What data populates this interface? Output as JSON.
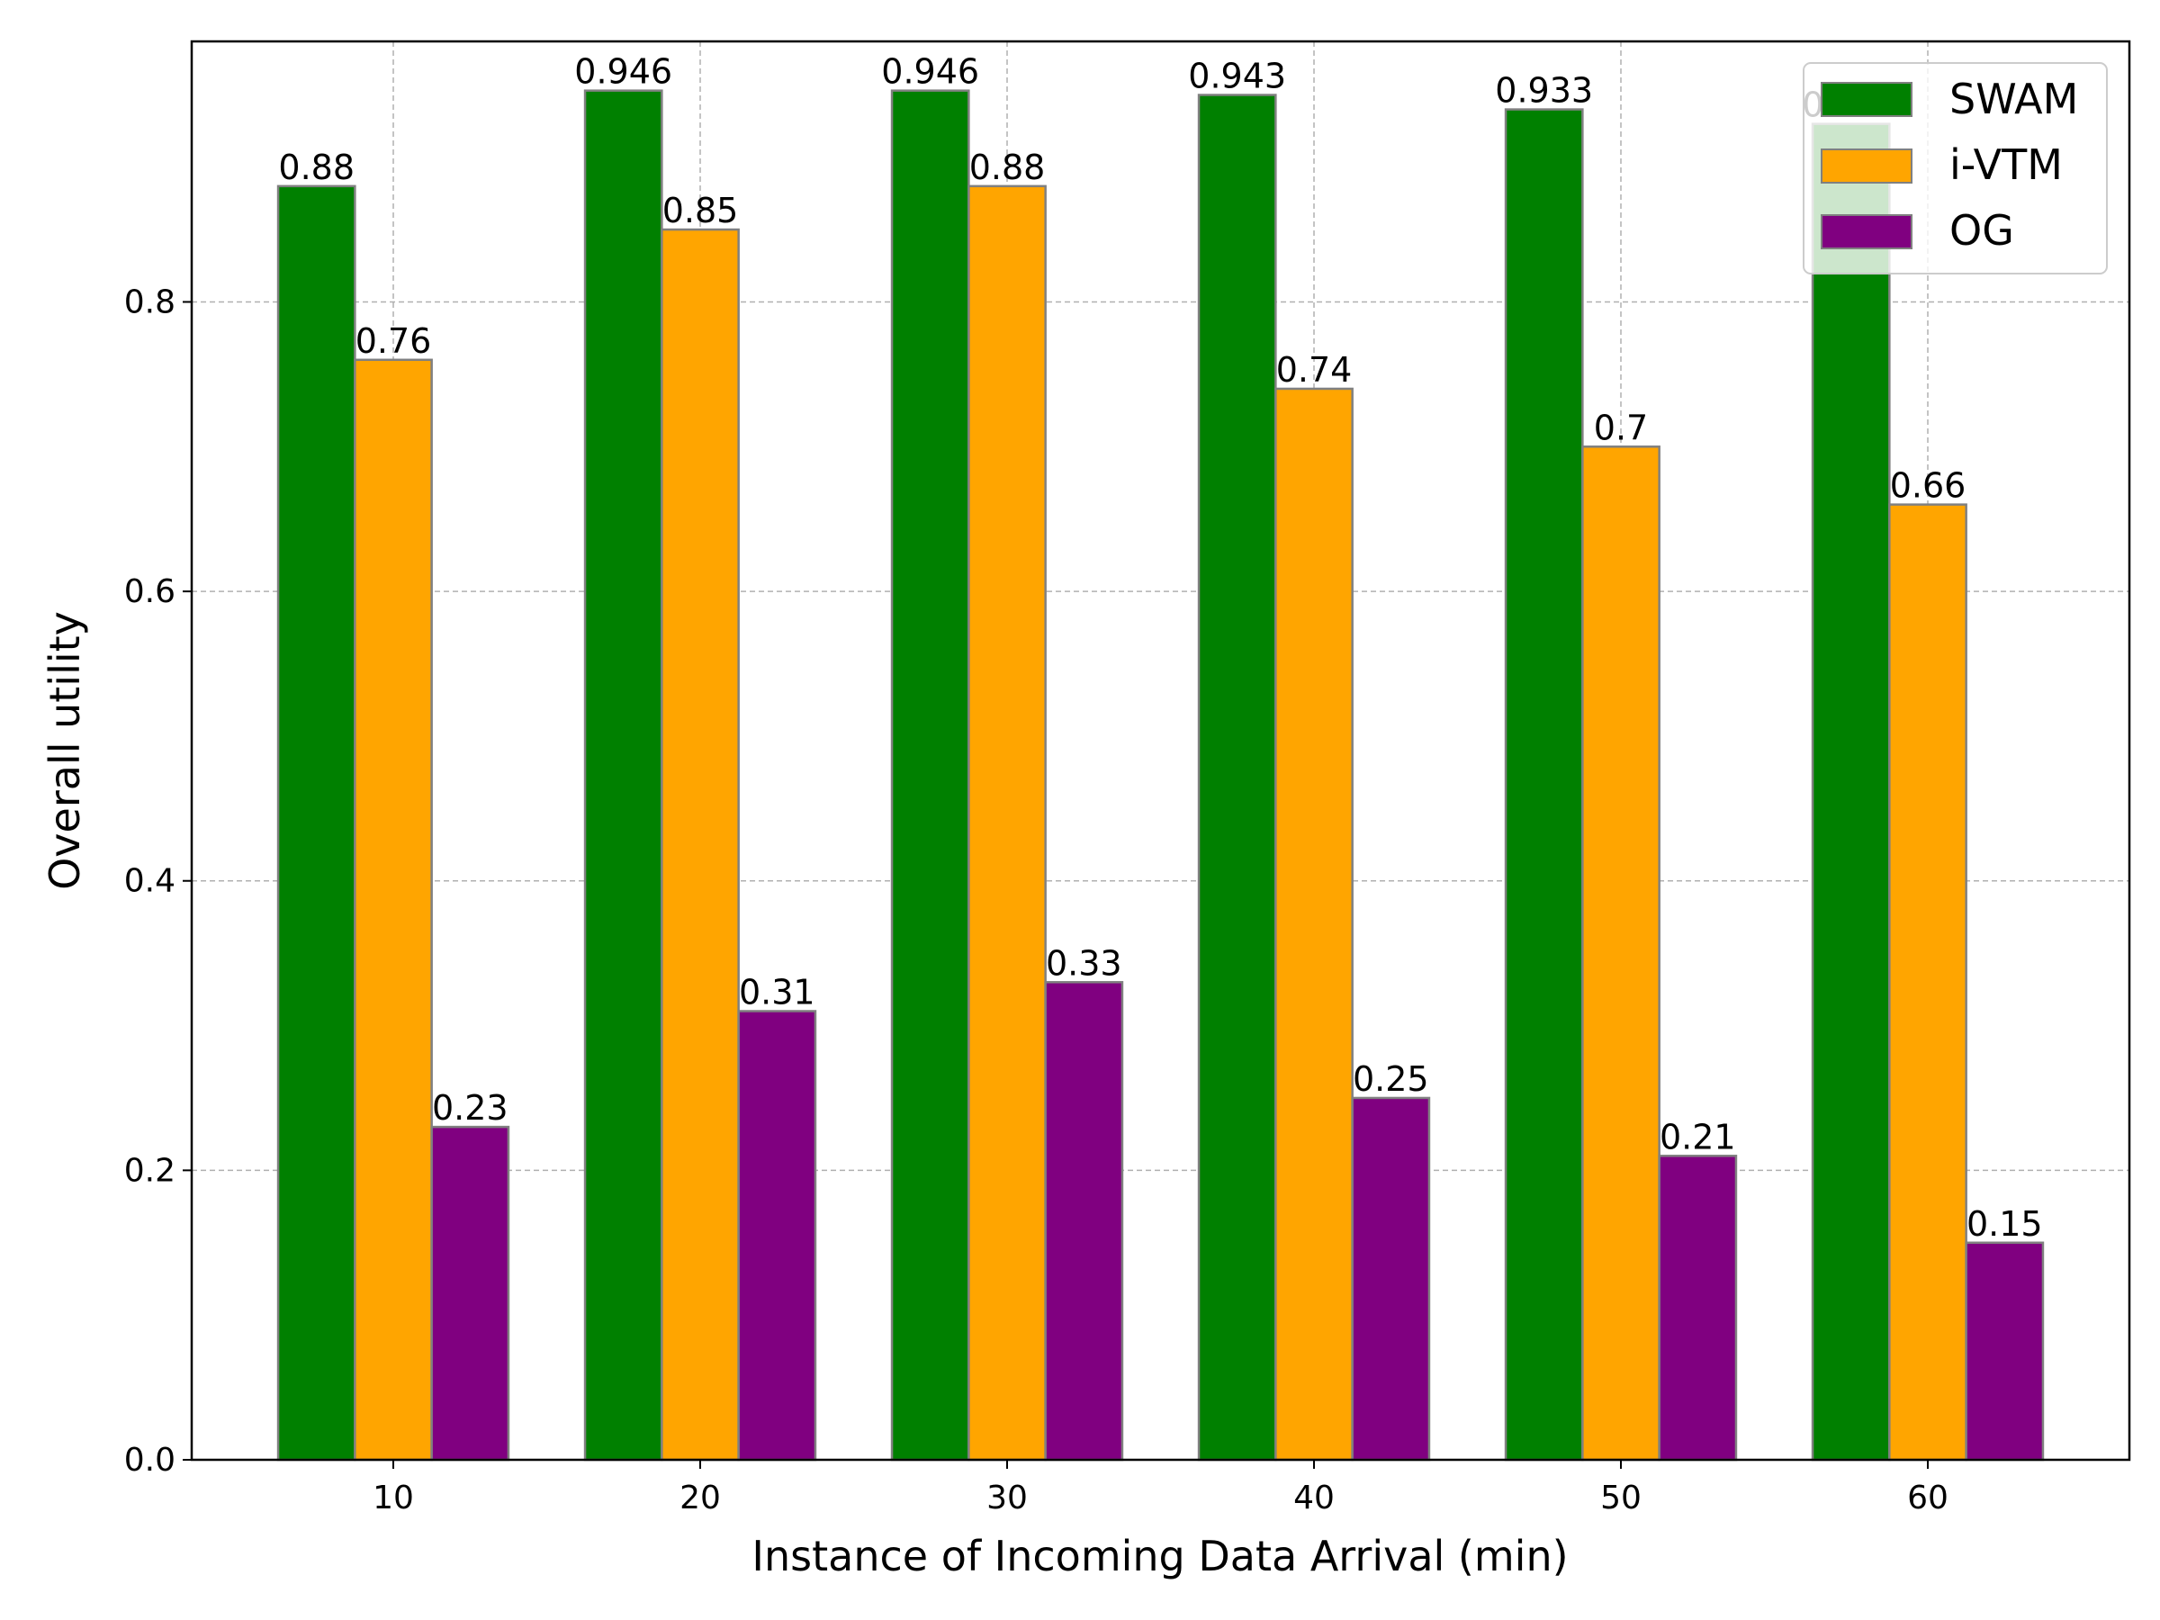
{
  "chart_data": {
    "type": "bar",
    "xlabel": "Instance of Incoming Data Arrival (min)",
    "ylabel": "Overall utility",
    "categories": [
      "10",
      "20",
      "30",
      "40",
      "50",
      "60"
    ],
    "ylim": [
      0,
      0.98
    ],
    "yticks": [
      0.0,
      0.2,
      0.4,
      0.6,
      0.8
    ],
    "ytick_labels": [
      "0.0",
      "0.2",
      "0.4",
      "0.6",
      "0.8"
    ],
    "grid": true,
    "legend_position": "top-right",
    "series": [
      {
        "name": "SWAM",
        "color": "#008000",
        "values": [
          0.88,
          0.946,
          0.946,
          0.943,
          0.933,
          0.923
        ],
        "labels": [
          "0.88",
          "0.946",
          "0.946",
          "0.943",
          "0.933",
          "0.923"
        ]
      },
      {
        "name": "i-VTM",
        "color": "#FFA500",
        "values": [
          0.76,
          0.85,
          0.88,
          0.74,
          0.7,
          0.66
        ],
        "labels": [
          "0.76",
          "0.85",
          "0.88",
          "0.74",
          "0.7",
          "0.66"
        ]
      },
      {
        "name": "OG",
        "color": "#800080",
        "values": [
          0.23,
          0.31,
          0.33,
          0.25,
          0.21,
          0.15
        ],
        "labels": [
          "0.23",
          "0.31",
          "0.33",
          "0.25",
          "0.21",
          "0.15"
        ]
      }
    ]
  }
}
